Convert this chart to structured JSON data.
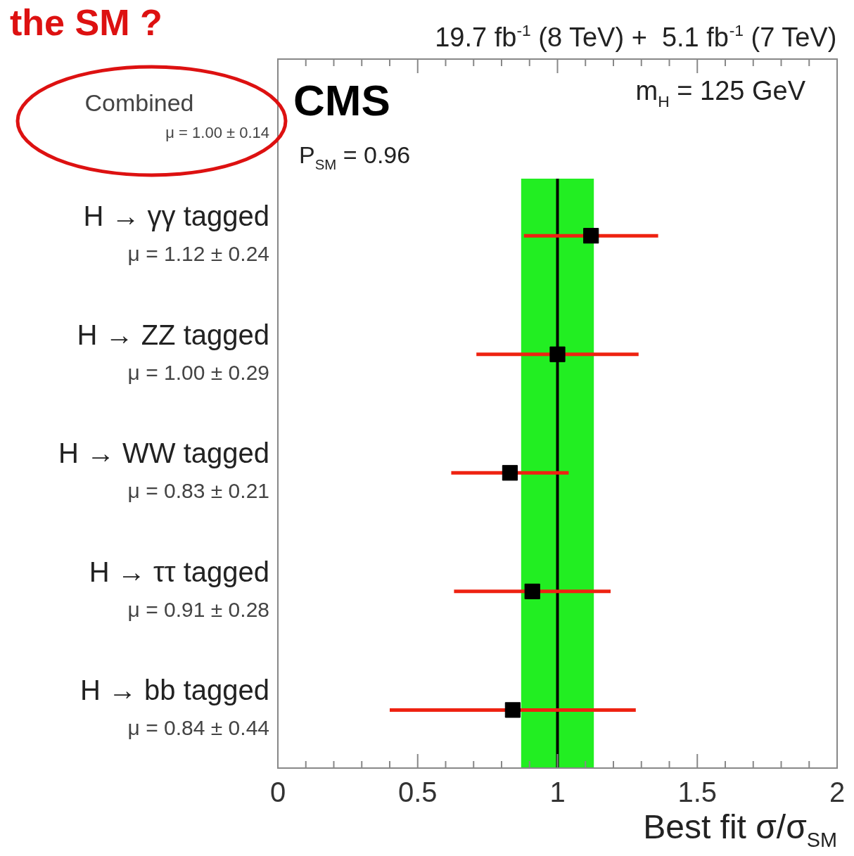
{
  "chart_data": {
    "type": "scatter",
    "orientation": "horizontal",
    "title": "the SM ?",
    "subtitle": "19.7 fb$^{-1}$ (8 TeV) +  5.1 fb$^{-1}$ (7 TeV)",
    "xlabel": "Best fit σ/σ$_{SM}$",
    "categories": [
      "H → γγ tagged",
      "H → ZZ tagged",
      "H → WW tagged",
      "H → ττ tagged",
      "H → bb tagged"
    ],
    "series": [
      {
        "color": "#000000",
        "values": [
          1.12,
          1.0,
          0.83,
          0.91,
          0.84
        ],
        "errors": [
          0.24,
          0.29,
          0.21,
          0.28,
          0.44
        ],
        "value_labels": [
          "μ = 1.12 ± 0.24",
          "μ = 1.00 ± 0.29",
          "μ = 0.83 ± 0.21",
          "μ = 0.91 ± 0.28",
          "μ = 0.84 ± 0.44"
        ]
      }
    ],
    "xlim": [
      0,
      2
    ],
    "xticks": [
      0,
      {
        "value": 0.1,
        "label": null
      },
      {
        "value": 0.2,
        "label": null
      },
      {
        "value": 0.3,
        "label": null
      },
      {
        "value": 0.4,
        "label": null
      },
      0.5,
      {
        "value": 0.6,
        "label": null
      },
      {
        "value": 0.7,
        "label": null
      },
      {
        "value": 0.8,
        "label": null
      },
      {
        "value": 0.9,
        "label": null
      },
      1,
      {
        "value": 1.1,
        "label": null
      },
      {
        "value": 1.2,
        "label": null
      },
      {
        "value": 1.3,
        "label": null
      },
      {
        "value": 1.4,
        "label": null
      },
      1.5,
      {
        "value": 1.6,
        "label": null
      },
      {
        "value": 1.7,
        "label": null
      },
      {
        "value": 1.8,
        "label": null
      },
      {
        "value": 1.9,
        "label": null
      },
      2
    ],
    "bands": [
      {
        "axis": "x",
        "from": 0.87,
        "to": 1.13,
        "color": "#22ee22"
      }
    ],
    "ref_lines": [
      {
        "axis": "x",
        "value": 1,
        "color": "#000000"
      }
    ],
    "annotations": [
      "Combined",
      "μ = 1.00 ± 0.14",
      "CMS",
      "m$_{H}$ = 125 GeV",
      "P$_{SM}$ = 0.96"
    ],
    "marker": "square",
    "grid": false,
    "legend": false
  }
}
